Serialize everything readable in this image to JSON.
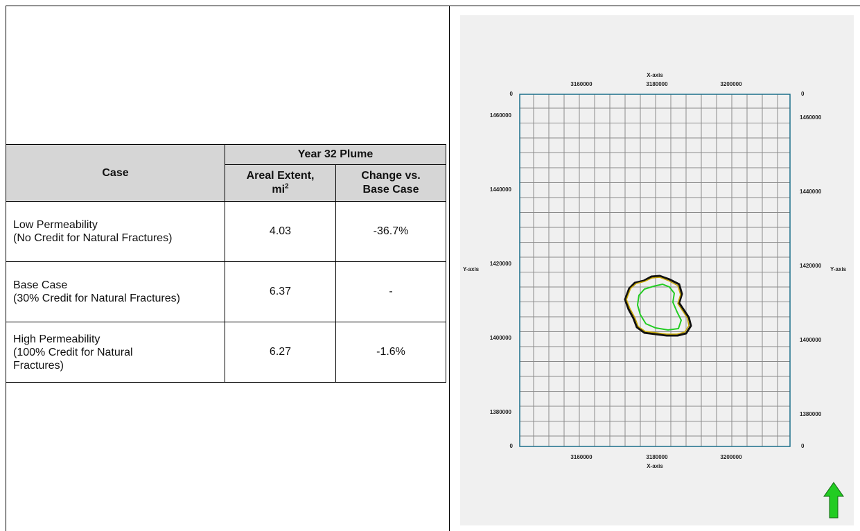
{
  "table": {
    "header_case": "Case",
    "header_group": "Year 32 Plume",
    "header_areal_line1": "Areal Extent,",
    "header_areal_line2": "mi",
    "header_areal_sup": "2",
    "header_change_line1": "Change vs.",
    "header_change_line2": "Base Case",
    "rows": [
      {
        "case_line1": "Low Permeability",
        "case_line2": "(No Credit for Natural Fractures)",
        "case_line3": "",
        "areal": "4.03",
        "change": "-36.7%"
      },
      {
        "case_line1": "Base Case",
        "case_line2": "(30% Credit for Natural Fractures)",
        "case_line3": "",
        "areal": "6.37",
        "change": "-"
      },
      {
        "case_line1": "High Permeability",
        "case_line2": "(100% Credit for Natural",
        "case_line3": "Fractures)",
        "areal": "6.27",
        "change": "-1.6%"
      }
    ]
  },
  "map": {
    "x_axis_title": "X-axis",
    "y_axis_title": "Y-axis",
    "x_ticks": [
      "3160000",
      "3180000",
      "3200000"
    ],
    "y_ticks": [
      "1460000",
      "1440000",
      "1420000",
      "1400000",
      "1380000"
    ],
    "corner_zero": "0",
    "north_arrow_color": "#22cc22",
    "plume_outer_color": "#111111",
    "plume_mid_color": "#c8a800",
    "plume_inner_color": "#22cc22",
    "axis_color": "#1b6f8a",
    "grid_color": "#8a8a8a"
  }
}
